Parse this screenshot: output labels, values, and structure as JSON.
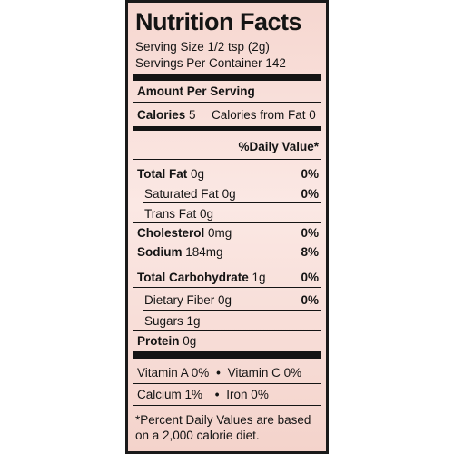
{
  "title": "Nutrition Facts",
  "serving_size": "Serving Size 1/2 tsp (2g)",
  "servings_per_container": "Servings Per Container 142",
  "amount_per_serving": "Amount Per Serving",
  "calories_label": "Calories",
  "calories_value": "5",
  "calories_from_fat": "Calories from Fat 0",
  "daily_value_header": "%Daily Value*",
  "nutrients": [
    {
      "label": "Total Fat",
      "amount": "0g",
      "dv": "0%"
    },
    {
      "label": "Saturated Fat",
      "amount": "0g",
      "dv": "0%"
    },
    {
      "label": "Trans Fat",
      "amount": "0g",
      "dv": ""
    },
    {
      "label": "Cholesterol",
      "amount": "0mg",
      "dv": "0%"
    },
    {
      "label": "Sodium",
      "amount": "184mg",
      "dv": "8%"
    },
    {
      "label": "Total Carbohydrate",
      "amount": "1g",
      "dv": "0%"
    },
    {
      "label": "Dietary Fiber",
      "amount": "0g",
      "dv": "0%"
    },
    {
      "label": "Sugars",
      "amount": "1g",
      "dv": ""
    },
    {
      "label": "Protein",
      "amount": "0g",
      "dv": ""
    }
  ],
  "vitamins": {
    "vitamin_a": "Vitamin A 0%",
    "vitamin_c": "Vitamin C 0%",
    "calcium": "Calcium 1%",
    "iron": "Iron 0%",
    "separator": "•"
  },
  "footnote": {
    "line1": "*Percent Daily Values are based",
    "line2": "on a 2,000 calorie diet."
  }
}
